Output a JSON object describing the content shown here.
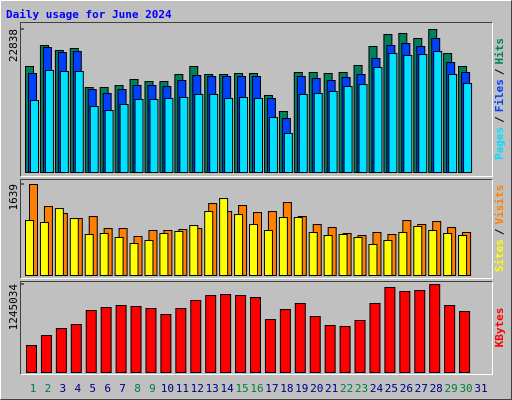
{
  "chart_data": {
    "type": "bar",
    "title": "Daily usage for June 2024",
    "categories": [
      "1",
      "2",
      "3",
      "4",
      "5",
      "6",
      "7",
      "8",
      "9",
      "10",
      "11",
      "12",
      "13",
      "14",
      "15",
      "16",
      "17",
      "18",
      "19",
      "20",
      "21",
      "22",
      "23",
      "24",
      "25",
      "26",
      "27",
      "28",
      "29",
      "30",
      "31"
    ],
    "category_colors": [
      "#008040",
      "#008040",
      "#000080",
      "#000080",
      "#000080",
      "#000080",
      "#000080",
      "#008040",
      "#008040",
      "#000080",
      "#000080",
      "#000080",
      "#000080",
      "#000080",
      "#008040",
      "#008040",
      "#000080",
      "#000080",
      "#000080",
      "#000080",
      "#000080",
      "#008040",
      "#008040",
      "#000080",
      "#000080",
      "#000080",
      "#000080",
      "#000080",
      "#008040",
      "#008040",
      "#000080"
    ],
    "legend_separator": "/",
    "panels": [
      {
        "ylim": [
          0,
          22838
        ],
        "yticks": [
          22838
        ],
        "series": [
          {
            "name": "Hits",
            "color": "#00805c",
            "values": [
              16930,
              20280,
              19480,
              19800,
              13570,
              13570,
              13890,
              14850,
              14530,
              14530,
              15650,
              16930,
              15650,
              15650,
              15810,
              15810,
              12300,
              9740,
              15970,
              15970,
              15810,
              15970,
              17090,
              20120,
              22040,
              22200,
              21400,
              22838,
              19000,
              16930,
              null
            ]
          },
          {
            "name": "Files",
            "color": "#0040ff",
            "values": [
              15810,
              19960,
              19160,
              19320,
              13250,
              12620,
              13250,
              13890,
              13890,
              13730,
              14690,
              15490,
              15330,
              15330,
              15330,
              15330,
              11820,
              8620,
              15330,
              15010,
              14690,
              15170,
              15650,
              18210,
              20280,
              20600,
              20120,
              21400,
              17570,
              15970,
              null
            ]
          },
          {
            "name": "Pages",
            "color": "#00e0ff",
            "values": [
              11500,
              16290,
              16130,
              16130,
              10540,
              9900,
              10860,
              11660,
              11660,
              11820,
              11980,
              12460,
              12460,
              11820,
              11980,
              11820,
              8780,
              6230,
              12460,
              12620,
              12940,
              13730,
              14050,
              16770,
              19000,
              18680,
              18840,
              19320,
              15650,
              14210,
              null
            ]
          }
        ]
      },
      {
        "ylim": [
          0,
          1639
        ],
        "yticks": [
          1639
        ],
        "series": [
          {
            "name": "Visits",
            "color": "#ff8000",
            "values": [
              1639,
              1242,
              1116,
              1026,
              1062,
              846,
              846,
              702,
              810,
              810,
              828,
              846,
              1296,
              1152,
              1260,
              1134,
              1152,
              1314,
              1062,
              918,
              864,
              756,
              720,
              774,
              738,
              990,
              918,
              972,
              864,
              774,
              null
            ]
          },
          {
            "name": "Sites",
            "color": "#ffff00",
            "values": [
              990,
              954,
              1206,
              1026,
              738,
              756,
              684,
              576,
              630,
              756,
              792,
              900,
              1152,
              1386,
              1098,
              918,
              810,
              1044,
              1044,
              774,
              720,
              738,
              684,
              558,
              630,
              774,
              882,
              810,
              756,
              720,
              null
            ]
          }
        ]
      },
      {
        "ylim": [
          0,
          1245034
        ],
        "yticks": [
          1245034
        ],
        "series": [
          {
            "name": "KBytes",
            "color": "#ff0000",
            "values": [
              382000,
              523500,
              622500,
              679100,
              877200,
              919600,
              947900,
              933800,
              905500,
              820600,
              905500,
              1018700,
              1089400,
              1103500,
              1089400,
              1061100,
              749800,
              891300,
              976200,
              792300,
              665000,
              650800,
              735700,
              976200,
              1202600,
              1146000,
              1160100,
              1245034,
              947900,
              863000,
              null
            ]
          }
        ]
      }
    ]
  }
}
